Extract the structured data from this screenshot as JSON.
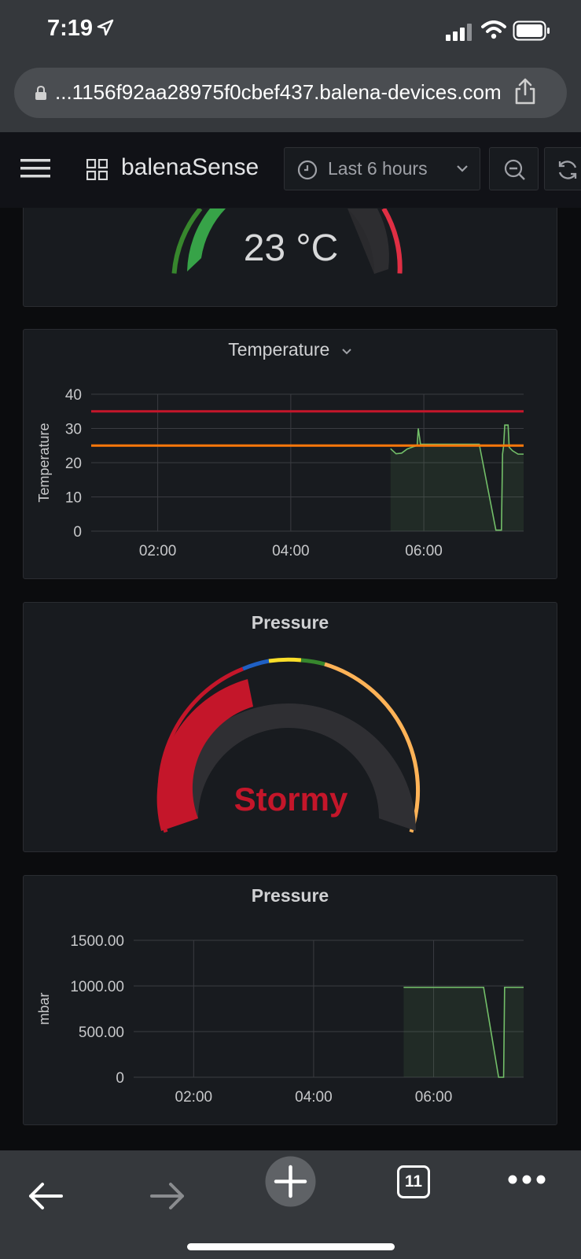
{
  "status_bar": {
    "time": "7:19"
  },
  "url_bar": {
    "url": "...1156f92aa28975f0cbef437.balena-devices.com"
  },
  "header": {
    "dashboard_title": "balenaSense",
    "time_range": "Last 6 hours"
  },
  "gauge_temperature": {
    "value_text": "23 °C",
    "value": 23
  },
  "temperature_panel": {
    "title": "Temperature",
    "chart_data": {
      "type": "line",
      "title": "Temperature",
      "ylabel": "Temperature",
      "xlabel": "",
      "x_ticks": [
        "02:00",
        "04:00",
        "06:00"
      ],
      "y_ticks": [
        "0",
        "10",
        "20",
        "30",
        "40"
      ],
      "ylim": [
        0,
        40
      ],
      "grid": true,
      "thresholds": [
        {
          "value": 35,
          "color": "#c4162a"
        },
        {
          "value": 25,
          "color": "#ff780a"
        }
      ],
      "series": [
        {
          "color": "#73bf69",
          "points": [
            [
              "05:30",
              24.1
            ],
            [
              "05:35",
              22.6
            ],
            [
              "05:40",
              22.8
            ],
            [
              "05:45",
              24.0
            ],
            [
              "05:50",
              24.6
            ],
            [
              "05:54",
              25.0
            ],
            [
              "05:55",
              30.0
            ],
            [
              "05:57",
              25.4
            ],
            [
              "06:00",
              25.4
            ],
            [
              "06:50",
              25.4
            ],
            [
              "07:05",
              0.3
            ],
            [
              "07:10",
              0.3
            ],
            [
              "07:11",
              22.5
            ],
            [
              "07:12",
              25.0
            ],
            [
              "07:13",
              31.0
            ],
            [
              "07:16",
              31.0
            ],
            [
              "07:17",
              24.5
            ],
            [
              "07:20",
              23.5
            ],
            [
              "07:25",
              22.5
            ],
            [
              "07:30",
              22.5
            ]
          ]
        }
      ]
    }
  },
  "pressure_gauge": {
    "title": "Pressure",
    "value_text": "Stormy",
    "value_color": "#c4162a"
  },
  "pressure_panel": {
    "title": "Pressure",
    "chart_data": {
      "type": "line",
      "title": "Pressure",
      "ylabel": "mbar",
      "xlabel": "",
      "x_ticks": [
        "02:00",
        "04:00",
        "06:00"
      ],
      "y_ticks": [
        "0",
        "500.00",
        "1000.00",
        "1500.00"
      ],
      "ylim": [
        0,
        1500
      ],
      "grid": true,
      "series": [
        {
          "color": "#73bf69",
          "points": [
            [
              "05:30",
              985
            ],
            [
              "06:50",
              985
            ],
            [
              "07:05",
              0
            ],
            [
              "07:10",
              0
            ],
            [
              "07:11",
              985
            ],
            [
              "07:30",
              985
            ]
          ]
        }
      ]
    }
  },
  "bottom_toolbar": {
    "tab_count": "11"
  }
}
